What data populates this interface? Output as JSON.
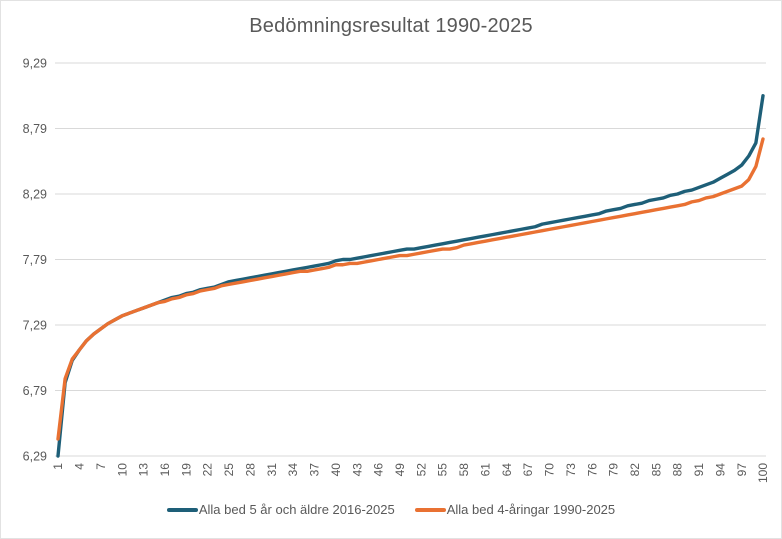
{
  "chart_data": {
    "type": "line",
    "title": "Bedömningsresultat 1990-2025",
    "xlabel": "",
    "ylabel": "",
    "xlim": [
      1,
      100
    ],
    "ylim": [
      6.29,
      9.29
    ],
    "yticks": [
      6.29,
      6.79,
      7.29,
      7.79,
      8.29,
      8.79,
      9.29
    ],
    "ytick_labels": [
      "6,29",
      "6,79",
      "7,29",
      "7,79",
      "8,29",
      "8,79",
      "9,29"
    ],
    "xticks": [
      1,
      4,
      7,
      10,
      13,
      16,
      19,
      22,
      25,
      28,
      31,
      34,
      37,
      40,
      43,
      46,
      49,
      52,
      55,
      58,
      61,
      64,
      67,
      70,
      73,
      76,
      79,
      82,
      85,
      88,
      91,
      94,
      97,
      100
    ],
    "x_values_note": "x runs 1..100, one point per integer",
    "grid": "horizontal",
    "legend_position": "bottom",
    "colors": {
      "gridline": "#D9D9D9",
      "axis_text": "#595959",
      "title_text": "#595959",
      "background": "#FFFFFF"
    },
    "series": [
      {
        "name": "Alla bed 5 år och äldre 2016-2025",
        "color": "#1E5F78",
        "values": [
          6.29,
          6.85,
          7.02,
          7.1,
          7.17,
          7.22,
          7.26,
          7.3,
          7.33,
          7.36,
          7.38,
          7.4,
          7.42,
          7.44,
          7.46,
          7.48,
          7.5,
          7.51,
          7.53,
          7.54,
          7.56,
          7.57,
          7.58,
          7.6,
          7.62,
          7.63,
          7.64,
          7.65,
          7.66,
          7.67,
          7.68,
          7.69,
          7.7,
          7.71,
          7.72,
          7.73,
          7.74,
          7.75,
          7.76,
          7.78,
          7.79,
          7.79,
          7.8,
          7.81,
          7.82,
          7.83,
          7.84,
          7.85,
          7.86,
          7.87,
          7.87,
          7.88,
          7.89,
          7.9,
          7.91,
          7.92,
          7.93,
          7.94,
          7.95,
          7.96,
          7.97,
          7.98,
          7.99,
          8.0,
          8.01,
          8.02,
          8.03,
          8.04,
          8.06,
          8.07,
          8.08,
          8.09,
          8.1,
          8.11,
          8.12,
          8.13,
          8.14,
          8.16,
          8.17,
          8.18,
          8.2,
          8.21,
          8.22,
          8.24,
          8.25,
          8.26,
          8.28,
          8.29,
          8.31,
          8.32,
          8.34,
          8.36,
          8.38,
          8.41,
          8.44,
          8.47,
          8.51,
          8.58,
          8.68,
          9.04
        ]
      },
      {
        "name": "Alla bed 4-åringar 1990-2025",
        "color": "#E97132",
        "values": [
          6.42,
          6.88,
          7.03,
          7.1,
          7.17,
          7.22,
          7.26,
          7.3,
          7.33,
          7.36,
          7.38,
          7.4,
          7.42,
          7.44,
          7.46,
          7.47,
          7.49,
          7.5,
          7.52,
          7.53,
          7.55,
          7.56,
          7.57,
          7.59,
          7.6,
          7.61,
          7.62,
          7.63,
          7.64,
          7.65,
          7.66,
          7.67,
          7.68,
          7.69,
          7.7,
          7.7,
          7.71,
          7.72,
          7.73,
          7.75,
          7.75,
          7.76,
          7.76,
          7.77,
          7.78,
          7.79,
          7.8,
          7.81,
          7.82,
          7.82,
          7.83,
          7.84,
          7.85,
          7.86,
          7.87,
          7.87,
          7.88,
          7.9,
          7.91,
          7.92,
          7.93,
          7.94,
          7.95,
          7.96,
          7.97,
          7.98,
          7.99,
          8.0,
          8.01,
          8.02,
          8.03,
          8.04,
          8.05,
          8.06,
          8.07,
          8.08,
          8.09,
          8.1,
          8.11,
          8.12,
          8.13,
          8.14,
          8.15,
          8.16,
          8.17,
          8.18,
          8.19,
          8.2,
          8.21,
          8.23,
          8.24,
          8.26,
          8.27,
          8.29,
          8.31,
          8.33,
          8.35,
          8.4,
          8.5,
          8.71
        ]
      }
    ]
  }
}
